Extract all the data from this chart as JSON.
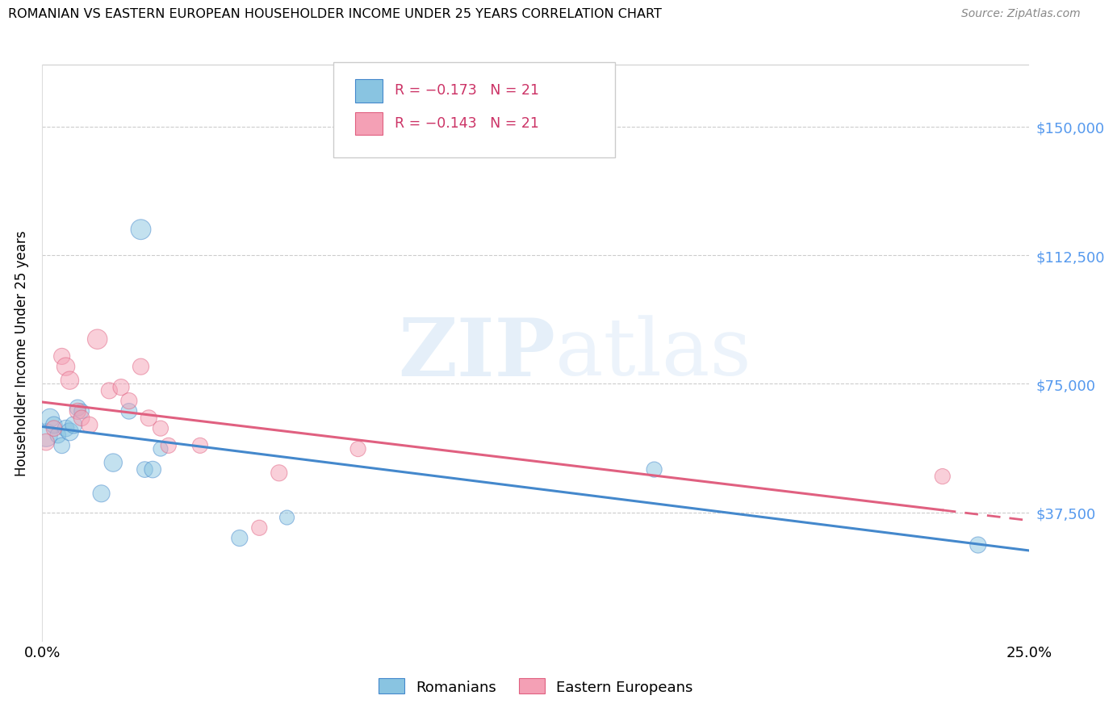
{
  "title": "ROMANIAN VS EASTERN EUROPEAN HOUSEHOLDER INCOME UNDER 25 YEARS CORRELATION CHART",
  "source": "Source: ZipAtlas.com",
  "ylabel": "Householder Income Under 25 years",
  "yticks": [
    37500,
    75000,
    112500,
    150000
  ],
  "ytick_labels": [
    "$37,500",
    "$75,000",
    "$112,500",
    "$150,000"
  ],
  "xlim": [
    0.0,
    0.25
  ],
  "ylim": [
    0,
    168000
  ],
  "legend_label1": "Romanians",
  "legend_label2": "Eastern Europeans",
  "color_blue": "#89c4e1",
  "color_blue_fill": "#aad4ed",
  "color_pink": "#f4a0b5",
  "color_pink_fill": "#f8c0cc",
  "color_blue_line": "#4488cc",
  "color_pink_line": "#e06080",
  "watermark_zip": "ZIP",
  "watermark_atlas": "atlas",
  "romanians_x": [
    0.001,
    0.002,
    0.003,
    0.004,
    0.005,
    0.006,
    0.007,
    0.008,
    0.009,
    0.01,
    0.015,
    0.018,
    0.022,
    0.025,
    0.026,
    0.028,
    0.03,
    0.05,
    0.062,
    0.155,
    0.237
  ],
  "romanians_y": [
    60000,
    65000,
    63000,
    60000,
    57000,
    62000,
    61000,
    63000,
    68000,
    67000,
    43000,
    52000,
    67000,
    120000,
    50000,
    50000,
    56000,
    30000,
    36000,
    50000,
    28000
  ],
  "romanians_size": [
    420,
    280,
    220,
    200,
    200,
    220,
    250,
    230,
    210,
    180,
    230,
    260,
    200,
    320,
    200,
    220,
    170,
    210,
    170,
    190,
    210
  ],
  "easterns_x": [
    0.001,
    0.003,
    0.005,
    0.006,
    0.007,
    0.009,
    0.01,
    0.012,
    0.014,
    0.017,
    0.02,
    0.022,
    0.025,
    0.027,
    0.03,
    0.032,
    0.04,
    0.055,
    0.06,
    0.08,
    0.228
  ],
  "easterns_y": [
    58000,
    62000,
    83000,
    80000,
    76000,
    67000,
    65000,
    63000,
    88000,
    73000,
    74000,
    70000,
    80000,
    65000,
    62000,
    57000,
    57000,
    33000,
    49000,
    56000,
    48000
  ],
  "easterns_size": [
    220,
    200,
    210,
    260,
    260,
    210,
    200,
    210,
    310,
    210,
    210,
    210,
    210,
    210,
    190,
    190,
    190,
    190,
    210,
    190,
    190
  ]
}
